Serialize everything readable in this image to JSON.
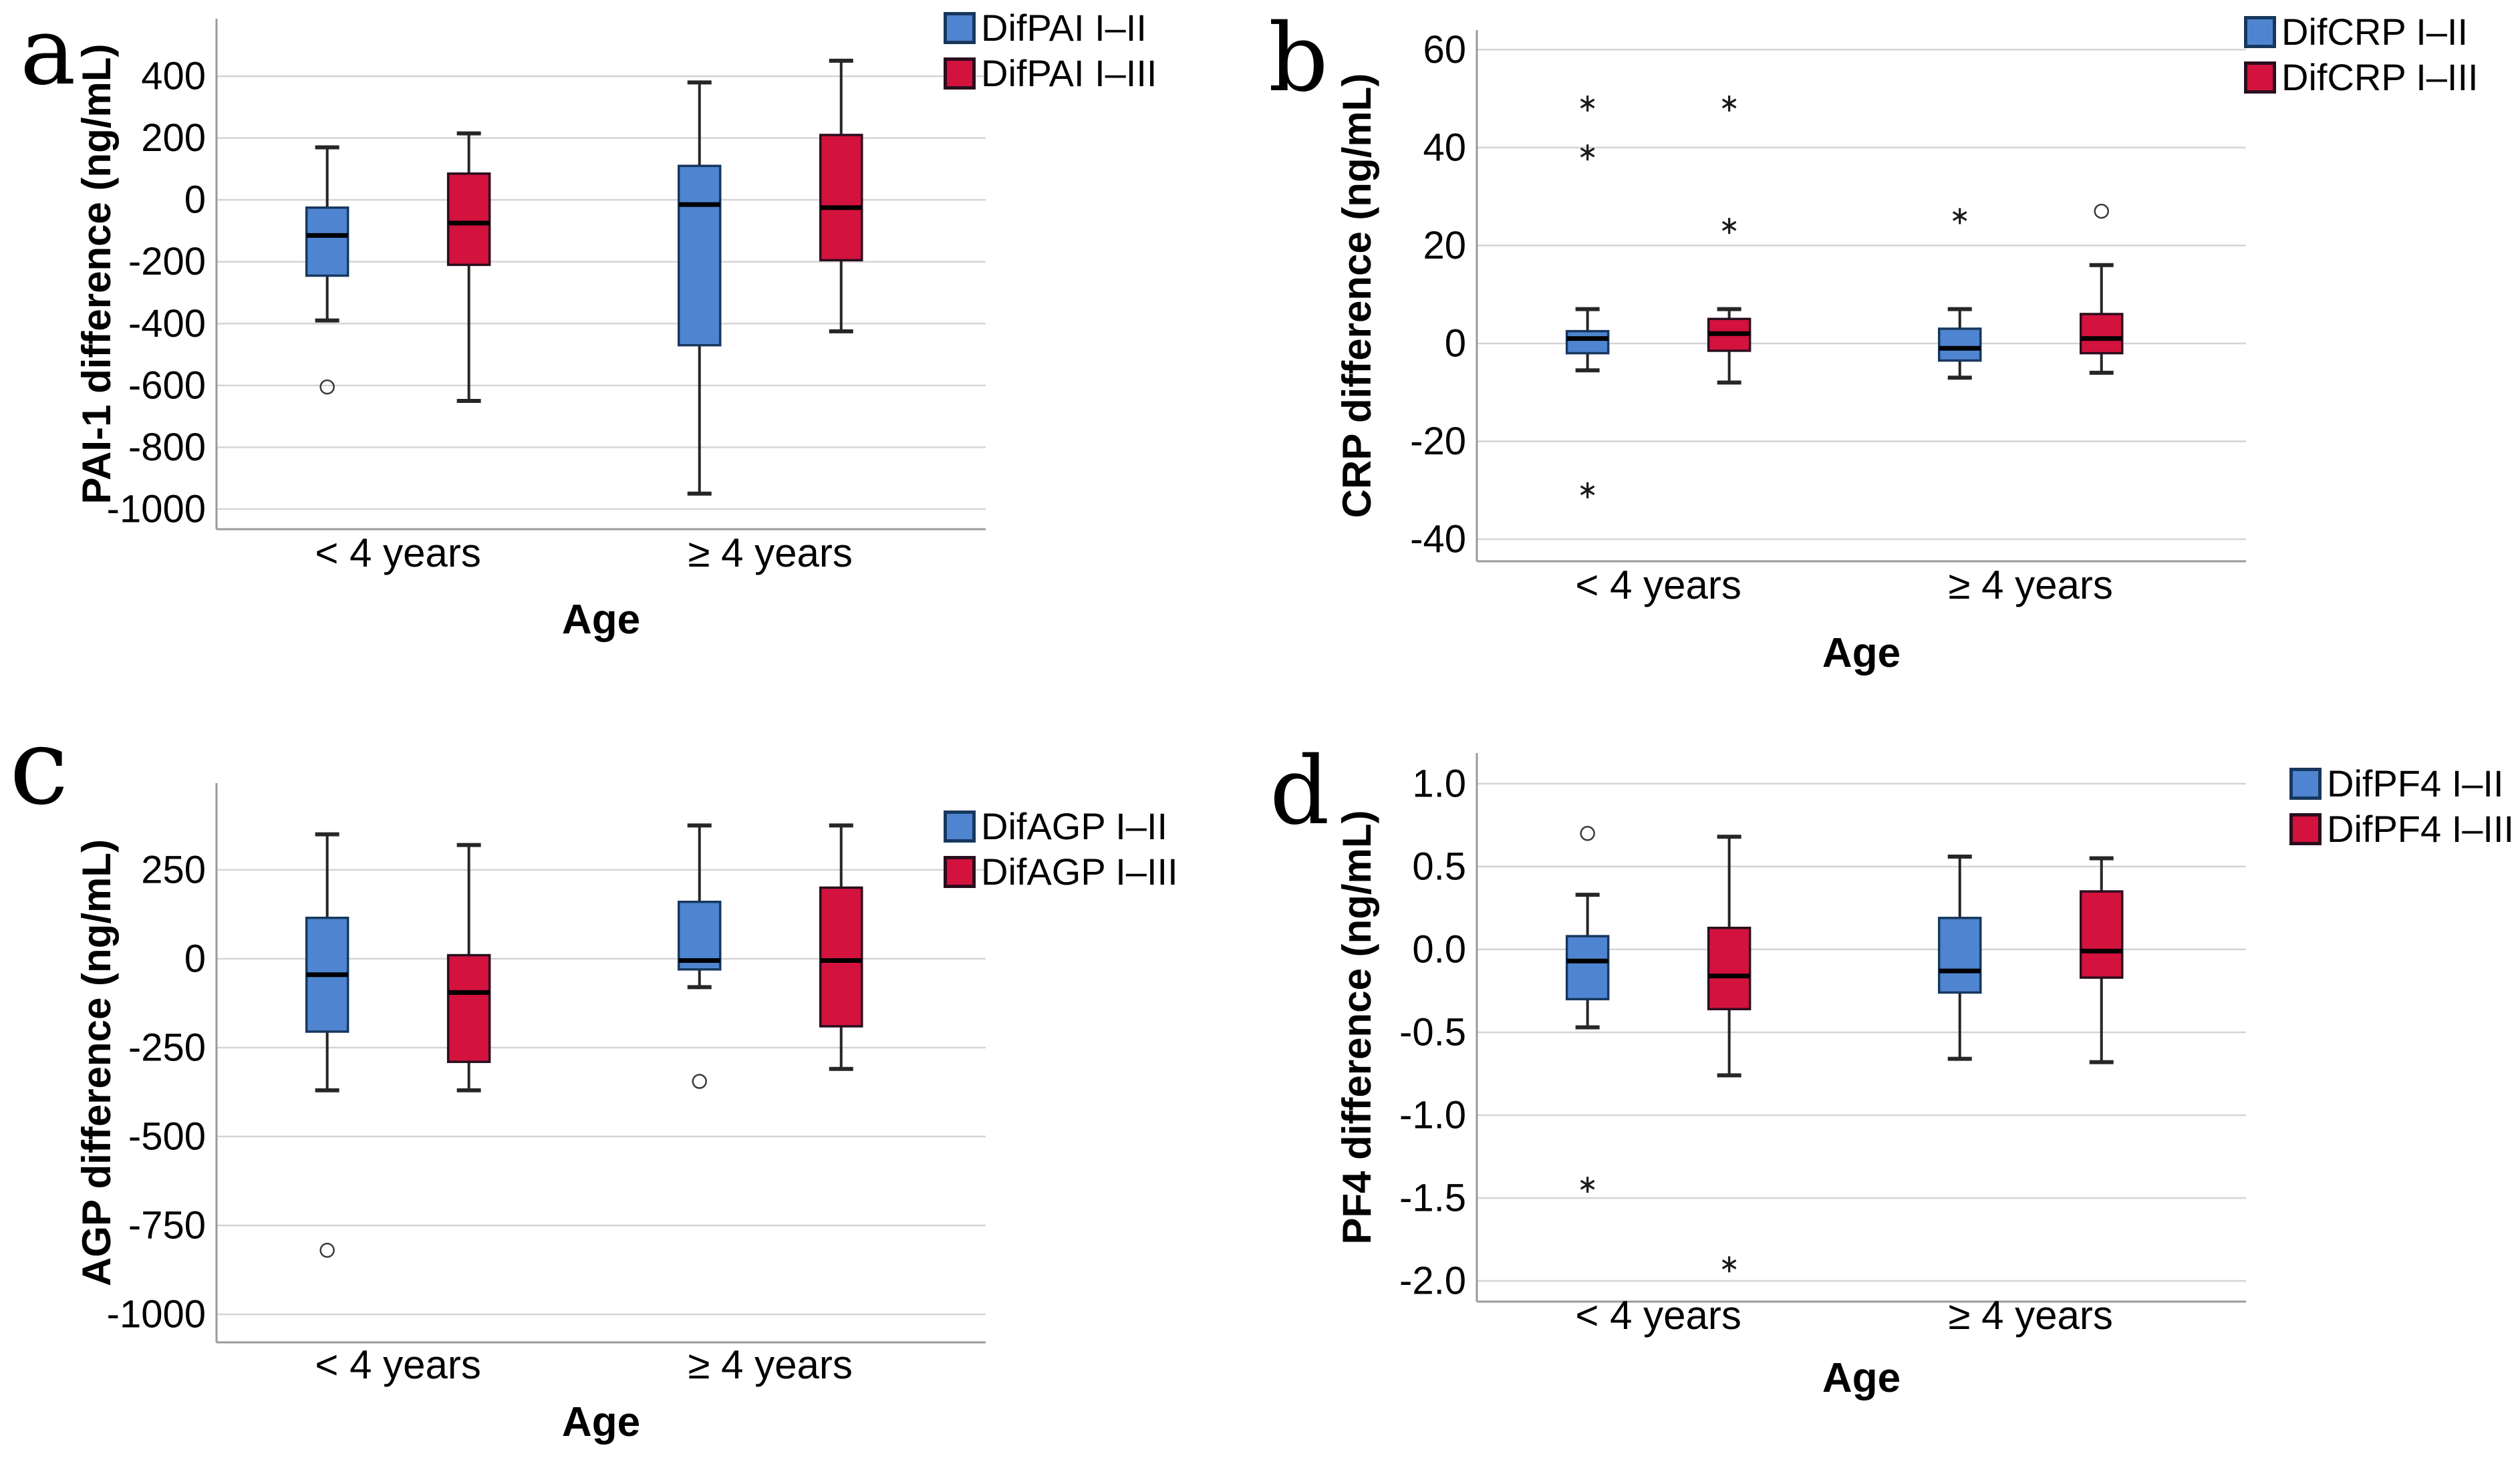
{
  "figure": {
    "background": "#ffffff",
    "x_axis_label": "Age",
    "categories": [
      "< 4 years",
      "≥ 4 years"
    ],
    "colors": {
      "series1_fill": "#4F85D0",
      "series1_border": "#17375E",
      "series2_fill": "#D3123E",
      "series2_border": "#2A0E1E",
      "median": "#000000",
      "whisker": "#262626",
      "gridline": "#D4D4D4",
      "axis_line": "#9A9A9A",
      "text": "#000000"
    }
  },
  "chart_data": [
    {
      "type": "box",
      "panel_label": "a",
      "ylabel": "PAI-1 difference (ng/mL)",
      "xlabel": "Age",
      "categories": [
        "< 4 years",
        "≥ 4 years"
      ],
      "ytick_labels": [
        "400",
        "200",
        "0",
        "-200",
        "-400",
        "-600",
        "-800",
        "-1000"
      ],
      "ytick_values": [
        400,
        200,
        0,
        -200,
        -400,
        -600,
        -800,
        -1000
      ],
      "ylim": [
        -1065,
        586
      ],
      "grid": true,
      "legend_position": "top-right",
      "legend": [
        {
          "label": "DifPAI I–II",
          "series": "series1"
        },
        {
          "label": "DifPAI I–III",
          "series": "series2"
        }
      ],
      "groups": [
        {
          "category": "< 4 years",
          "boxes": [
            {
              "series": "series1",
              "whisker_low": -390,
              "q1": -245,
              "median": -115,
              "q3": -25,
              "whisker_high": 170,
              "outliers": [
                {
                  "marker": "circle",
                  "value": -605
                }
              ]
            },
            {
              "series": "series2",
              "whisker_low": -650,
              "q1": -210,
              "median": -75,
              "q3": 85,
              "whisker_high": 215,
              "outliers": []
            }
          ]
        },
        {
          "category": "≥ 4 years",
          "boxes": [
            {
              "series": "series1",
              "whisker_low": -950,
              "q1": -470,
              "median": -15,
              "q3": 110,
              "whisker_high": 380,
              "outliers": []
            },
            {
              "series": "series2",
              "whisker_low": -425,
              "q1": -195,
              "median": -25,
              "q3": 210,
              "whisker_high": 450,
              "outliers": []
            }
          ]
        }
      ]
    },
    {
      "type": "box",
      "panel_label": "b",
      "ylabel": "CRP difference (ng/mL)",
      "xlabel": "Age",
      "categories": [
        "< 4 years",
        "≥ 4 years"
      ],
      "ytick_labels": [
        "60",
        "40",
        "20",
        "0",
        "-20",
        "-40"
      ],
      "ytick_values": [
        60,
        40,
        20,
        0,
        -20,
        -40
      ],
      "ylim": [
        -44.5,
        64
      ],
      "grid": true,
      "legend_position": "top-right",
      "legend": [
        {
          "label": "DifCRP I–II",
          "series": "series1"
        },
        {
          "label": "DifCRP I–III",
          "series": "series2"
        }
      ],
      "groups": [
        {
          "category": "< 4 years",
          "boxes": [
            {
              "series": "series1",
              "whisker_low": -5.5,
              "q1": -2,
              "median": 1,
              "q3": 2.5,
              "whisker_high": 7,
              "outliers": [
                {
                  "marker": "star",
                  "value": 49
                },
                {
                  "marker": "star",
                  "value": 39
                },
                {
                  "marker": "star",
                  "value": -30
                }
              ]
            },
            {
              "series": "series2",
              "whisker_low": -8,
              "q1": -1.5,
              "median": 2,
              "q3": 5,
              "whisker_high": 7,
              "outliers": [
                {
                  "marker": "star",
                  "value": 49
                },
                {
                  "marker": "star",
                  "value": 24
                }
              ]
            }
          ]
        },
        {
          "category": "≥ 4 years",
          "boxes": [
            {
              "series": "series1",
              "whisker_low": -7,
              "q1": -3.5,
              "median": -1,
              "q3": 3,
              "whisker_high": 7,
              "outliers": [
                {
                  "marker": "star",
                  "value": 26
                }
              ]
            },
            {
              "series": "series2",
              "whisker_low": -6,
              "q1": -2,
              "median": 1,
              "q3": 6,
              "whisker_high": 16,
              "outliers": [
                {
                  "marker": "circle",
                  "value": 27
                }
              ]
            }
          ]
        }
      ]
    },
    {
      "type": "box",
      "panel_label": "c",
      "ylabel": "AGP difference (ng/mL)",
      "xlabel": "Age",
      "categories": [
        "< 4 years",
        "≥ 4 years"
      ],
      "ytick_labels": [
        "250",
        "0",
        "-250",
        "-500",
        "-750",
        "-1000"
      ],
      "ytick_values": [
        250,
        0,
        -250,
        -500,
        -750,
        -1000
      ],
      "ylim": [
        -1079,
        494
      ],
      "grid": true,
      "legend_position": "top-right",
      "legend": [
        {
          "label": "DifAGP I–II",
          "series": "series1"
        },
        {
          "label": "DifAGP I–III",
          "series": "series2"
        }
      ],
      "groups": [
        {
          "category": "< 4 years",
          "boxes": [
            {
              "series": "series1",
              "whisker_low": -370,
              "q1": -205,
              "median": -45,
              "q3": 115,
              "whisker_high": 350,
              "outliers": [
                {
                  "marker": "circle",
                  "value": -820
                }
              ]
            },
            {
              "series": "series2",
              "whisker_low": -370,
              "q1": -290,
              "median": -95,
              "q3": 10,
              "whisker_high": 320,
              "outliers": []
            }
          ]
        },
        {
          "category": "≥ 4 years",
          "boxes": [
            {
              "series": "series1",
              "whisker_low": -80,
              "q1": -30,
              "median": -5,
              "q3": 160,
              "whisker_high": 375,
              "outliers": [
                {
                  "marker": "circle",
                  "value": -345
                }
              ]
            },
            {
              "series": "series2",
              "whisker_low": -310,
              "q1": -190,
              "median": -5,
              "q3": 200,
              "whisker_high": 375,
              "outliers": []
            }
          ]
        }
      ]
    },
    {
      "type": "box",
      "panel_label": "d",
      "ylabel": "PF4 difference (ng/mL)",
      "xlabel": "Age",
      "categories": [
        "< 4 years",
        "≥ 4 years"
      ],
      "ytick_labels": [
        "1.0",
        "0.5",
        "0.0",
        "-0.5",
        "-1.0",
        "-1.5",
        "-2.0"
      ],
      "ytick_values": [
        1.0,
        0.5,
        0.0,
        -0.5,
        -1.0,
        -1.5,
        -2.0
      ],
      "ylim": [
        -2.125,
        1.185
      ],
      "grid": true,
      "legend_position": "top-right",
      "legend": [
        {
          "label": "DifPF4 I–II",
          "series": "series1"
        },
        {
          "label": "DifPF4 I–III",
          "series": "series2"
        }
      ],
      "groups": [
        {
          "category": "< 4 years",
          "boxes": [
            {
              "series": "series1",
              "whisker_low": -0.47,
              "q1": -0.3,
              "median": -0.07,
              "q3": 0.08,
              "whisker_high": 0.33,
              "outliers": [
                {
                  "marker": "circle",
                  "value": 0.7
                },
                {
                  "marker": "star",
                  "value": -1.42
                }
              ]
            },
            {
              "series": "series2",
              "whisker_low": -0.76,
              "q1": -0.36,
              "median": -0.16,
              "q3": 0.13,
              "whisker_high": 0.68,
              "outliers": [
                {
                  "marker": "star",
                  "value": -1.9
                }
              ]
            }
          ]
        },
        {
          "category": "≥ 4 years",
          "boxes": [
            {
              "series": "series1",
              "whisker_low": -0.66,
              "q1": -0.26,
              "median": -0.13,
              "q3": 0.19,
              "whisker_high": 0.56,
              "outliers": []
            },
            {
              "series": "series2",
              "whisker_low": -0.68,
              "q1": -0.17,
              "median": -0.01,
              "q3": 0.35,
              "whisker_high": 0.55,
              "outliers": []
            }
          ]
        }
      ]
    }
  ]
}
